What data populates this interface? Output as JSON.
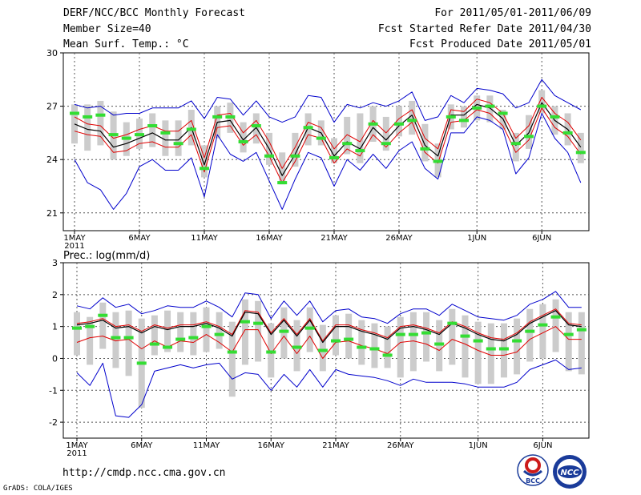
{
  "header": {
    "title": "DERF/NCC/BCC Monthly Forecast",
    "member_size": "Member Size=40",
    "variable": "Mean Surf. Temp.: °C",
    "period": "For 2011/05/01-2011/06/09",
    "start_date": "Fcst Started Refer Date 2011/04/30",
    "produced_date": "Fcst Produced Date 2011/05/01"
  },
  "footer": {
    "url": "http://cmdp.ncc.cma.gov.cn",
    "credit": "GrADS: COLA/IGES",
    "logo_bcc": "BCC",
    "logo_ncc": "NCC"
  },
  "colors": {
    "mean_line": "#000000",
    "spread_line": "#e00000",
    "envelope_line": "#0000cc",
    "box": "#cccccc",
    "observed": "#33dd33",
    "grid": "#555555"
  },
  "chart_data": [
    {
      "type": "line",
      "title": "Mean Surf. Temp.: °C",
      "ylim": [
        20,
        30
      ],
      "yticks": [
        21,
        24,
        27,
        30
      ],
      "grid": true,
      "x_tick_labels": [
        "1MAY",
        "6MAY",
        "11MAY",
        "16MAY",
        "21MAY",
        "26MAY",
        "1JUN",
        "6JUN"
      ],
      "x_tick_days": [
        1,
        6,
        11,
        16,
        21,
        26,
        32,
        37
      ],
      "x_year_label": "2011",
      "x_days": [
        1,
        2,
        3,
        4,
        5,
        6,
        7,
        8,
        9,
        10,
        11,
        12,
        13,
        14,
        15,
        16,
        17,
        18,
        19,
        20,
        21,
        22,
        23,
        24,
        25,
        26,
        27,
        28,
        29,
        30,
        31,
        32,
        33,
        34,
        35,
        36,
        37,
        38,
        39,
        40
      ],
      "series": [
        {
          "name": "ensemble-mean",
          "values": [
            26.0,
            25.7,
            25.6,
            24.7,
            24.9,
            25.2,
            25.5,
            25.1,
            25.1,
            25.8,
            23.7,
            26.1,
            26.2,
            25.1,
            25.8,
            24.6,
            23.1,
            24.3,
            25.8,
            25.5,
            24.2,
            25.0,
            24.6,
            25.8,
            25.1,
            25.9,
            26.5,
            24.8,
            24.2,
            26.5,
            26.5,
            27.1,
            26.9,
            26.3,
            24.8,
            25.5,
            27.2,
            26.2,
            25.7,
            24.7
          ]
        },
        {
          "name": "upper-spread",
          "values": [
            26.4,
            26.0,
            25.9,
            25.2,
            25.4,
            25.7,
            25.9,
            25.6,
            25.6,
            26.2,
            24.1,
            26.5,
            26.6,
            25.5,
            26.2,
            25.0,
            23.5,
            24.7,
            26.1,
            25.8,
            24.6,
            25.4,
            25.0,
            26.2,
            25.5,
            26.3,
            26.8,
            25.2,
            24.6,
            26.8,
            26.7,
            27.4,
            27.2,
            26.6,
            25.2,
            25.9,
            27.5,
            26.6,
            26.1,
            25.1
          ]
        },
        {
          "name": "lower-spread",
          "values": [
            25.6,
            25.4,
            25.3,
            24.4,
            24.5,
            24.9,
            25.0,
            24.7,
            24.7,
            25.4,
            23.3,
            25.8,
            25.9,
            24.8,
            25.4,
            24.2,
            22.7,
            23.9,
            25.4,
            25.2,
            23.8,
            24.6,
            24.2,
            25.4,
            24.7,
            25.5,
            26.1,
            24.4,
            23.8,
            26.1,
            26.2,
            26.8,
            26.6,
            25.9,
            24.4,
            25.1,
            26.9,
            25.8,
            25.3,
            24.3
          ]
        },
        {
          "name": "upper-envelope",
          "values": [
            27.1,
            26.9,
            27.0,
            26.5,
            26.6,
            26.6,
            26.9,
            26.9,
            26.9,
            27.3,
            26.3,
            27.5,
            27.4,
            26.5,
            27.3,
            26.4,
            26.1,
            26.4,
            27.6,
            27.5,
            26.1,
            27.1,
            26.9,
            27.2,
            27.0,
            27.3,
            27.8,
            26.2,
            26.4,
            27.6,
            27.2,
            28.0,
            27.9,
            27.7,
            26.9,
            27.2,
            28.5,
            27.6,
            27.2,
            26.8
          ]
        },
        {
          "name": "lower-envelope",
          "values": [
            24.0,
            22.7,
            22.3,
            21.2,
            22.1,
            23.6,
            24.0,
            23.4,
            23.4,
            24.1,
            21.9,
            25.4,
            24.3,
            23.9,
            24.4,
            22.8,
            21.2,
            22.9,
            24.4,
            24.1,
            22.5,
            24.0,
            23.4,
            24.3,
            23.5,
            24.5,
            25.0,
            23.5,
            22.9,
            25.5,
            25.5,
            26.4,
            26.2,
            25.7,
            23.2,
            24.1,
            26.6,
            25.2,
            24.4,
            22.7
          ]
        },
        {
          "name": "box-upper",
          "values": [
            27.1,
            27.1,
            27.3,
            26.7,
            26.1,
            26.3,
            26.6,
            26.2,
            26.2,
            26.8,
            24.8,
            27.0,
            27.2,
            26.1,
            26.6,
            25.5,
            24.4,
            25.5,
            26.6,
            26.2,
            25.2,
            26.4,
            26.6,
            27.0,
            26.4,
            27.0,
            27.3,
            26.0,
            24.9,
            27.1,
            27.0,
            27.6,
            27.6,
            26.8,
            25.5,
            26.5,
            27.9,
            27.0,
            26.6,
            25.5
          ]
        },
        {
          "name": "box-lower",
          "values": [
            24.9,
            24.5,
            24.8,
            24.0,
            24.2,
            24.6,
            24.7,
            24.2,
            24.2,
            24.8,
            23.0,
            25.2,
            25.5,
            24.4,
            24.9,
            23.7,
            22.6,
            23.6,
            24.8,
            24.8,
            23.8,
            24.3,
            23.8,
            25.0,
            24.5,
            25.3,
            25.4,
            23.9,
            23.0,
            25.7,
            25.8,
            26.2,
            26.1,
            25.7,
            23.9,
            24.6,
            26.6,
            25.4,
            24.8,
            23.8
          ]
        },
        {
          "name": "observed",
          "values": [
            26.6,
            26.4,
            26.5,
            25.4,
            25.2,
            25.4,
            25.9,
            25.5,
            24.9,
            25.7,
            23.5,
            26.4,
            26.4,
            25.0,
            25.9,
            24.2,
            22.7,
            24.2,
            25.8,
            25.2,
            24.1,
            24.9,
            24.5,
            26.0,
            24.9,
            26.0,
            26.2,
            24.6,
            23.9,
            26.4,
            26.2,
            26.9,
            27.0,
            26.6,
            24.9,
            25.3,
            27.0,
            26.4,
            25.5,
            24.4
          ]
        }
      ]
    },
    {
      "type": "line",
      "title": "Prec.: log(mm/d)",
      "ylim": [
        -2.5,
        3
      ],
      "yticks": [
        -2,
        -1,
        0,
        1,
        2,
        3
      ],
      "grid": true,
      "x_tick_labels": [
        "1MAY",
        "6MAY",
        "11MAY",
        "16MAY",
        "21MAY",
        "26MAY",
        "1JUN",
        "6JUN"
      ],
      "x_tick_days": [
        1,
        6,
        11,
        16,
        21,
        26,
        32,
        37
      ],
      "x_year_label": "2011",
      "x_days": [
        1,
        2,
        3,
        4,
        5,
        6,
        7,
        8,
        9,
        10,
        11,
        12,
        13,
        14,
        15,
        16,
        17,
        18,
        19,
        20,
        21,
        22,
        23,
        24,
        25,
        26,
        27,
        28,
        29,
        30,
        31,
        32,
        33,
        34,
        35,
        36,
        37,
        38,
        39,
        40
      ],
      "series": [
        {
          "name": "ensemble-mean",
          "values": [
            1.05,
            1.1,
            1.2,
            0.95,
            1.0,
            0.8,
            1.0,
            0.9,
            1.0,
            1.0,
            1.1,
            0.95,
            0.7,
            1.45,
            1.4,
            0.75,
            1.2,
            0.7,
            1.2,
            0.5,
            1.0,
            1.0,
            0.85,
            0.75,
            0.6,
            0.95,
            1.0,
            0.9,
            0.75,
            1.1,
            0.95,
            0.75,
            0.6,
            0.55,
            0.75,
            1.1,
            1.3,
            1.5,
            1.05,
            1.0
          ]
        },
        {
          "name": "upper-spread",
          "values": [
            1.1,
            1.15,
            1.25,
            1.0,
            1.05,
            0.85,
            1.05,
            0.95,
            1.05,
            1.05,
            1.15,
            1.0,
            0.75,
            1.5,
            1.45,
            0.8,
            1.25,
            0.75,
            1.25,
            0.55,
            1.05,
            1.05,
            0.9,
            0.8,
            0.65,
            1.0,
            1.05,
            0.95,
            0.8,
            1.15,
            1.0,
            0.8,
            0.65,
            0.6,
            0.8,
            1.15,
            1.35,
            1.55,
            1.1,
            1.05
          ]
        },
        {
          "name": "lower-spread",
          "values": [
            0.5,
            0.65,
            0.7,
            0.55,
            0.6,
            0.3,
            0.55,
            0.35,
            0.55,
            0.5,
            0.75,
            0.5,
            0.2,
            0.9,
            0.9,
            0.15,
            0.7,
            0.15,
            0.7,
            0.0,
            0.5,
            0.55,
            0.4,
            0.3,
            0.15,
            0.5,
            0.55,
            0.45,
            0.25,
            0.6,
            0.45,
            0.25,
            0.1,
            0.1,
            0.2,
            0.6,
            0.8,
            1.0,
            0.6,
            0.6
          ]
        },
        {
          "name": "upper-envelope",
          "values": [
            1.65,
            1.55,
            1.9,
            1.6,
            1.7,
            1.4,
            1.5,
            1.65,
            1.6,
            1.6,
            1.8,
            1.6,
            1.3,
            2.05,
            2.0,
            1.25,
            1.8,
            1.35,
            1.8,
            1.15,
            1.5,
            1.55,
            1.3,
            1.25,
            1.1,
            1.4,
            1.55,
            1.55,
            1.35,
            1.7,
            1.5,
            1.3,
            1.25,
            1.2,
            1.35,
            1.7,
            1.85,
            2.1,
            1.6,
            1.6
          ]
        },
        {
          "name": "lower-envelope",
          "values": [
            -0.45,
            -0.85,
            -0.15,
            -1.8,
            -1.85,
            -1.45,
            -0.4,
            -0.3,
            -0.2,
            -0.3,
            -0.2,
            -0.15,
            -0.65,
            -0.45,
            -0.5,
            -1.0,
            -0.5,
            -0.9,
            -0.35,
            -0.9,
            -0.35,
            -0.5,
            -0.55,
            -0.6,
            -0.7,
            -0.85,
            -0.65,
            -0.75,
            -0.75,
            -0.75,
            -0.8,
            -0.9,
            -0.9,
            -0.9,
            -0.75,
            -0.35,
            -0.2,
            -0.05,
            -0.35,
            -0.3
          ]
        },
        {
          "name": "box-upper",
          "values": [
            1.45,
            1.3,
            1.75,
            1.45,
            1.5,
            1.25,
            1.35,
            1.5,
            1.45,
            1.45,
            1.6,
            1.45,
            1.15,
            1.85,
            1.8,
            1.1,
            1.6,
            1.2,
            1.6,
            1.05,
            1.35,
            1.4,
            1.2,
            1.1,
            1.0,
            1.3,
            1.45,
            1.45,
            1.2,
            1.55,
            1.35,
            1.15,
            1.1,
            1.1,
            1.25,
            1.55,
            1.7,
            1.85,
            1.45,
            1.45
          ]
        },
        {
          "name": "box-lower",
          "values": [
            0.1,
            -0.2,
            0.3,
            -0.3,
            -0.55,
            -1.55,
            0.1,
            0.2,
            0.2,
            0.1,
            0.2,
            0.3,
            -1.2,
            -0.2,
            -0.1,
            -0.6,
            0.0,
            -0.4,
            0.2,
            -0.4,
            0.1,
            0.0,
            -0.2,
            -0.3,
            -0.3,
            -0.6,
            -0.4,
            -0.1,
            -0.4,
            -0.2,
            -0.6,
            -0.8,
            -0.8,
            -0.6,
            -0.5,
            -0.1,
            0.0,
            0.2,
            -0.4,
            -0.5
          ]
        },
        {
          "name": "observed",
          "values": [
            0.95,
            1.0,
            1.35,
            0.65,
            0.65,
            -0.15,
            0.45,
            0.35,
            0.6,
            0.65,
            1.0,
            0.75,
            0.2,
            1.15,
            1.1,
            0.2,
            0.85,
            0.35,
            0.95,
            0.25,
            0.55,
            0.6,
            0.35,
            0.3,
            0.1,
            0.75,
            0.75,
            0.8,
            0.45,
            1.1,
            0.7,
            0.55,
            0.3,
            0.3,
            0.55,
            0.85,
            1.05,
            1.3,
            0.75,
            0.9
          ]
        }
      ]
    }
  ]
}
